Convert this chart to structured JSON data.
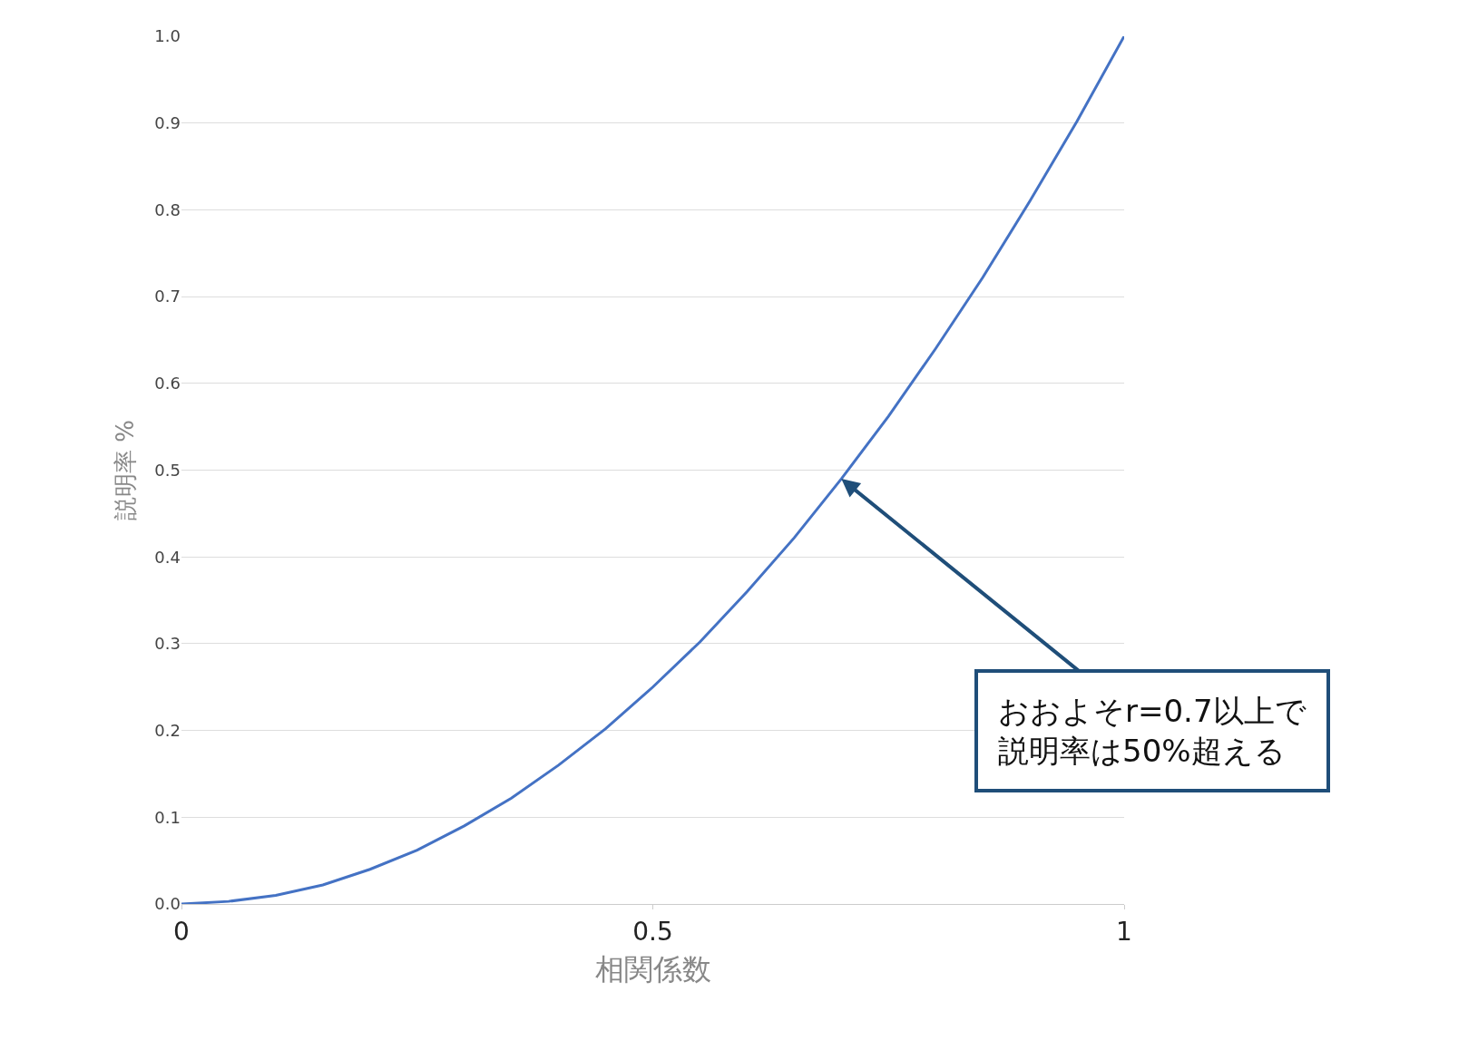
{
  "chart_data": {
    "type": "line",
    "xlabel": "相関係数",
    "ylabel": "説明率 %",
    "x": [
      0,
      0.05,
      0.1,
      0.15,
      0.2,
      0.25,
      0.3,
      0.35,
      0.4,
      0.45,
      0.5,
      0.55,
      0.6,
      0.65,
      0.7,
      0.75,
      0.8,
      0.85,
      0.9,
      0.95,
      1
    ],
    "series": [
      {
        "color": "#4472c4",
        "values": [
          0,
          0.003,
          0.01,
          0.022,
          0.04,
          0.062,
          0.09,
          0.122,
          0.16,
          0.202,
          0.25,
          0.302,
          0.36,
          0.422,
          0.49,
          0.562,
          0.64,
          0.722,
          0.81,
          0.902,
          1
        ]
      }
    ],
    "xlim": [
      0,
      1
    ],
    "xticks": [
      0,
      0.5,
      1
    ],
    "ylim": [
      0,
      1
    ],
    "yticks": [
      {
        "value": 0,
        "label": "0.0"
      },
      0.1,
      0.2,
      0.3,
      0.4,
      0.5,
      0.6,
      0.7,
      0.8,
      0.9,
      {
        "value": 1,
        "label": "1.0"
      }
    ],
    "grid": "y",
    "marker": "none",
    "line_style": "solid",
    "annotations": [
      {
        "text": "おおよそr=0.7以上で説明率は50%超える",
        "x": 0.7,
        "y": 0.49
      }
    ]
  }
}
